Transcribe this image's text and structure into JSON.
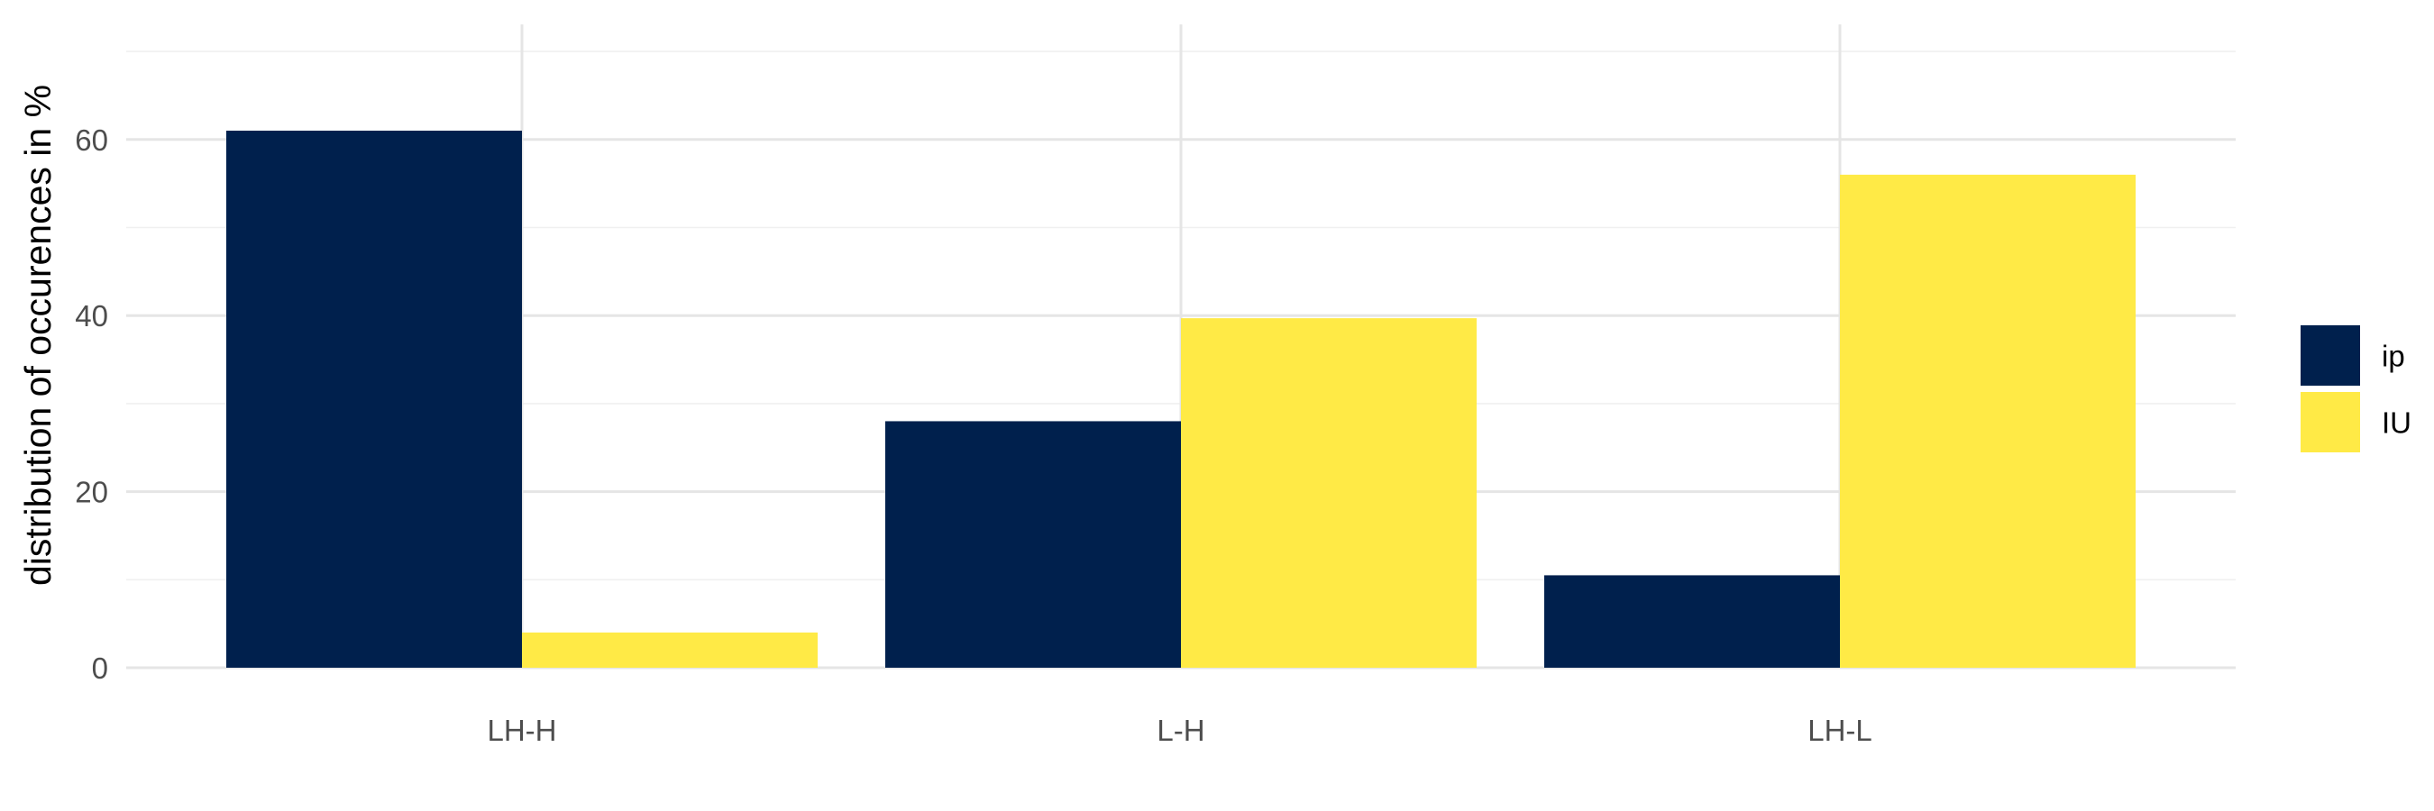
{
  "chart_data": {
    "type": "bar",
    "categories": [
      "LH-H",
      "L-H",
      "LH-L"
    ],
    "series": [
      {
        "name": "ip",
        "values": [
          61,
          28,
          10.5
        ],
        "color": "#00204d"
      },
      {
        "name": "IU",
        "values": [
          4,
          39.7,
          56
        ],
        "color": "#ffea46"
      }
    ],
    "title": "",
    "xlabel": "",
    "ylabel": "distribution of occurences in %",
    "ylim": [
      0,
      70
    ],
    "yticks": [
      0,
      20,
      40,
      60
    ],
    "y_minor_ticks": [
      10,
      30,
      50,
      70
    ],
    "grid": true,
    "legend_position": "right"
  }
}
